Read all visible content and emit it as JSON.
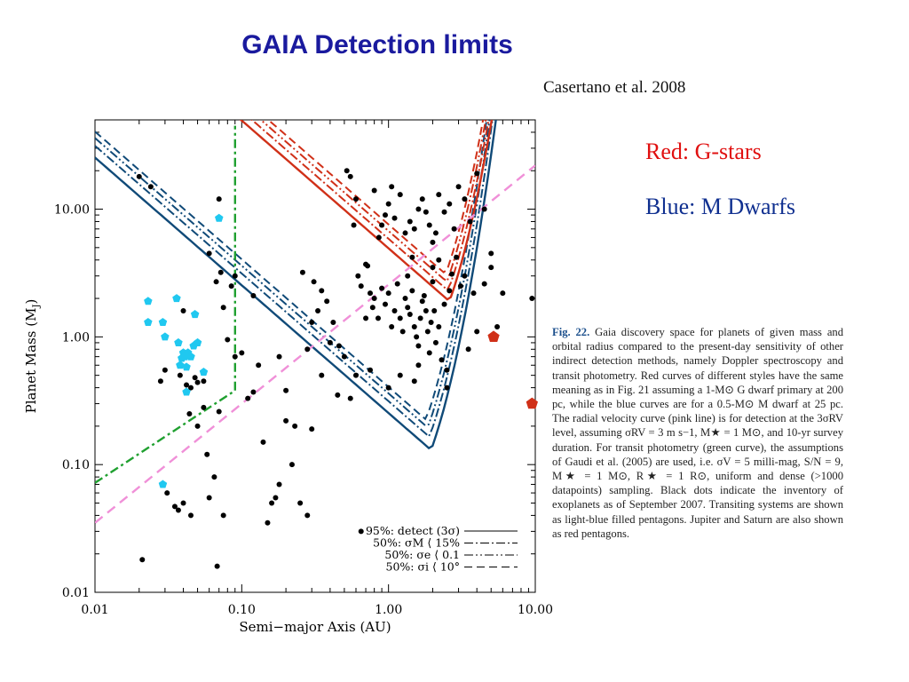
{
  "slide": {
    "title": "GAIA Detection limits",
    "citation": "Casertano et al. 2008",
    "legend_red": "Red: G-stars",
    "legend_blue": "Blue: M Dwarfs"
  },
  "caption": {
    "label": "Fig. 22.",
    "text": " Gaia discovery space for planets of given mass and orbital radius compared to the present-day sensitivity of other indirect detection methods, namely Doppler spectroscopy and transit photometry. Red curves of different styles have the same meaning as in Fig. 21 assuming a 1-M⊙ G dwarf primary at 200 pc, while the blue curves are for a 0.5-M⊙ M dwarf at 25 pc. The radial velocity curve (pink line) is for detection at the 3σRV level, assuming σRV = 3 m s−1, M★ = 1 M⊙, and 10-yr survey duration. For transit photometry (green curve), the assumptions of Gaudi et al. (2005) are used, i.e. σV = 5 milli-mag, S/N = 9, M★ = 1 M⊙, R★ = 1 R⊙, uniform and dense (>1000 datapoints) sampling. Black dots indicate the inventory of exoplanets as of September 2007. Transiting systems are shown as light-blue filled pentagons. Jupiter and Saturn are also shown as red pentagons."
  },
  "colors": {
    "red_curves": "#d03018",
    "blue_curves": "#104a78",
    "rv_curve": "#f090d8",
    "transit_curve": "#20a030",
    "transiting_markers": "#20c8f0",
    "known_planets": "#000000"
  },
  "chart_data": {
    "type": "line",
    "xlabel": "Semi−major Axis (AU)",
    "ylabel": "Planet Mass (M",
    "ylabel_sub": "J",
    "ylabel_end": ")",
    "xscale": "log",
    "yscale": "log",
    "xlim": [
      0.01,
      10
    ],
    "ylim": [
      0.01,
      50
    ],
    "xticks": [
      {
        "value": 0.01,
        "label": "0.01"
      },
      {
        "value": 0.1,
        "label": "0.10"
      },
      {
        "value": 1,
        "label": "1.00"
      },
      {
        "value": 10,
        "label": "10.00"
      }
    ],
    "yticks": [
      {
        "value": 0.01,
        "label": "0.01"
      },
      {
        "value": 0.1,
        "label": "0.10"
      },
      {
        "value": 1,
        "label": "1.00"
      },
      {
        "value": 10,
        "label": "10.00"
      }
    ],
    "legend": {
      "placement": "bottom-right",
      "entries": [
        {
          "label": "95%: detect (3σ)",
          "dash": "solid"
        },
        {
          "label": "50%: σM ⟨ 15%",
          "dash": "dash-dot"
        },
        {
          "label": "50%: σe ⟨ 0.1",
          "dash": "dash-dot-dot"
        },
        {
          "label": "50%: σi ⟨ 10°",
          "dash": "dashed"
        }
      ]
    },
    "series": [
      {
        "group": "M dwarf",
        "style": "solid",
        "min": [
          1.95,
          0.13
        ]
      },
      {
        "group": "M dwarf",
        "style": "dash-dot",
        "min": [
          1.9,
          0.165
        ]
      },
      {
        "group": "M dwarf",
        "style": "dash-dot-dot",
        "min": [
          1.85,
          0.195
        ]
      },
      {
        "group": "M dwarf",
        "style": "dashed",
        "min": [
          1.8,
          0.225
        ]
      },
      {
        "group": "G dwarf",
        "style": "solid",
        "min": [
          2.6,
          1.9
        ]
      },
      {
        "group": "G dwarf",
        "style": "dash-dot",
        "min": [
          2.55,
          2.3
        ]
      },
      {
        "group": "G dwarf",
        "style": "dash-dot-dot",
        "min": [
          2.5,
          2.7
        ]
      },
      {
        "group": "G dwarf",
        "style": "dashed",
        "min": [
          2.45,
          3.1
        ]
      }
    ],
    "rv_curve": [
      [
        0.01,
        0.035
      ],
      [
        10,
        22
      ]
    ],
    "transit_curve": [
      [
        0.01,
        0.072
      ],
      [
        0.09,
        0.38
      ],
      [
        0.09,
        45
      ]
    ],
    "solar_system": [
      [
        5.2,
        1.0
      ],
      [
        9.5,
        0.3
      ]
    ],
    "transiting_planets": [
      [
        0.023,
        1.9
      ],
      [
        0.023,
        1.3
      ],
      [
        0.029,
        1.3
      ],
      [
        0.03,
        1.0
      ],
      [
        0.036,
        2.0
      ],
      [
        0.037,
        0.9
      ],
      [
        0.04,
        0.75
      ],
      [
        0.039,
        0.68
      ],
      [
        0.038,
        0.6
      ],
      [
        0.041,
        0.7
      ],
      [
        0.043,
        0.75
      ],
      [
        0.045,
        0.7
      ],
      [
        0.042,
        0.58
      ],
      [
        0.047,
        0.85
      ],
      [
        0.05,
        0.9
      ],
      [
        0.055,
        0.53
      ],
      [
        0.048,
        1.5
      ],
      [
        0.042,
        0.37
      ],
      [
        0.07,
        8.5
      ],
      [
        0.029,
        0.07
      ]
    ],
    "known_planets": [
      [
        0.021,
        0.018
      ],
      [
        0.02,
        18
      ],
      [
        0.024,
        15
      ],
      [
        0.028,
        0.45
      ],
      [
        0.03,
        0.55
      ],
      [
        0.031,
        0.06
      ],
      [
        0.035,
        0.047
      ],
      [
        0.037,
        0.044
      ],
      [
        0.04,
        0.05
      ],
      [
        0.045,
        0.04
      ],
      [
        0.038,
        0.5
      ],
      [
        0.04,
        1.6
      ],
      [
        0.042,
        0.42
      ],
      [
        0.045,
        0.4
      ],
      [
        0.05,
        0.44
      ],
      [
        0.048,
        0.48
      ],
      [
        0.044,
        0.25
      ],
      [
        0.05,
        0.2
      ],
      [
        0.055,
        0.45
      ],
      [
        0.058,
        0.12
      ],
      [
        0.065,
        0.08
      ],
      [
        0.07,
        0.26
      ],
      [
        0.06,
        0.055
      ],
      [
        0.075,
        0.04
      ],
      [
        0.068,
        0.016
      ],
      [
        0.067,
        2.7
      ],
      [
        0.072,
        3.2
      ],
      [
        0.075,
        1.7
      ],
      [
        0.08,
        0.95
      ],
      [
        0.09,
        0.7
      ],
      [
        0.1,
        0.75
      ],
      [
        0.11,
        0.33
      ],
      [
        0.12,
        0.37
      ],
      [
        0.13,
        0.6
      ],
      [
        0.14,
        0.15
      ],
      [
        0.15,
        0.035
      ],
      [
        0.16,
        0.05
      ],
      [
        0.17,
        0.055
      ],
      [
        0.18,
        0.07
      ],
      [
        0.2,
        0.22
      ],
      [
        0.22,
        0.1
      ],
      [
        0.23,
        0.2
      ],
      [
        0.25,
        0.05
      ],
      [
        0.28,
        0.04
      ],
      [
        0.3,
        0.19
      ],
      [
        0.26,
        3.2
      ],
      [
        0.31,
        2.7
      ],
      [
        0.33,
        1.6
      ],
      [
        0.35,
        2.3
      ],
      [
        0.38,
        1.9
      ],
      [
        0.42,
        1.3
      ],
      [
        0.46,
        0.85
      ],
      [
        0.5,
        0.7
      ],
      [
        0.55,
        0.33
      ],
      [
        0.6,
        0.5
      ],
      [
        0.62,
        3.0
      ],
      [
        0.65,
        0.03
      ],
      [
        0.7,
        3.7
      ],
      [
        0.72,
        3.6
      ],
      [
        0.75,
        2.2
      ],
      [
        0.78,
        1.7
      ],
      [
        0.8,
        2.0
      ],
      [
        0.85,
        1.4
      ],
      [
        0.9,
        2.4
      ],
      [
        0.95,
        1.8
      ],
      [
        1.0,
        2.2
      ],
      [
        1.05,
        1.2
      ],
      [
        1.1,
        1.6
      ],
      [
        1.15,
        2.6
      ],
      [
        1.2,
        1.4
      ],
      [
        1.25,
        1.1
      ],
      [
        1.3,
        2.0
      ],
      [
        1.35,
        1.7
      ],
      [
        1.4,
        1.5
      ],
      [
        1.45,
        2.3
      ],
      [
        1.5,
        1.2
      ],
      [
        1.55,
        1.0
      ],
      [
        1.6,
        0.85
      ],
      [
        1.65,
        1.4
      ],
      [
        1.7,
        1.9
      ],
      [
        1.75,
        2.1
      ],
      [
        1.8,
        1.6
      ],
      [
        1.85,
        1.1
      ],
      [
        1.9,
        0.75
      ],
      [
        1.95,
        1.3
      ],
      [
        2.0,
        2.7
      ],
      [
        2.05,
        1.6
      ],
      [
        2.1,
        0.9
      ],
      [
        2.2,
        1.2
      ],
      [
        2.3,
        0.66
      ],
      [
        2.4,
        1.8
      ],
      [
        2.5,
        0.55
      ],
      [
        2.6,
        2.3
      ],
      [
        2.7,
        3.1
      ],
      [
        2.9,
        4.2
      ],
      [
        3.1,
        2.5
      ],
      [
        3.3,
        3.0
      ],
      [
        3.5,
        0.8
      ],
      [
        3.8,
        2.2
      ],
      [
        4.0,
        1.1
      ],
      [
        4.5,
        2.6
      ],
      [
        5.0,
        3.5
      ],
      [
        5.5,
        1.2
      ],
      [
        6.0,
        2.2
      ],
      [
        0.86,
        6.0
      ],
      [
        0.9,
        7.5
      ],
      [
        0.95,
        9.0
      ],
      [
        1.0,
        11
      ],
      [
        1.05,
        15
      ],
      [
        1.1,
        8.5
      ],
      [
        1.2,
        13
      ],
      [
        1.3,
        6.5
      ],
      [
        1.4,
        8.0
      ],
      [
        1.5,
        7.0
      ],
      [
        1.6,
        10
      ],
      [
        1.7,
        12
      ],
      [
        1.8,
        9.5
      ],
      [
        1.9,
        7.5
      ],
      [
        2.0,
        5.5
      ],
      [
        2.1,
        6.5
      ],
      [
        2.2,
        13
      ],
      [
        2.4,
        9.5
      ],
      [
        2.6,
        11
      ],
      [
        2.8,
        7.0
      ],
      [
        3.0,
        15
      ],
      [
        3.3,
        12
      ],
      [
        3.6,
        8.0
      ],
      [
        4.0,
        19
      ],
      [
        4.5,
        10
      ],
      [
        5.0,
        4.5
      ],
      [
        9.5,
        2.0
      ],
      [
        0.6,
        12
      ],
      [
        0.55,
        18
      ],
      [
        0.3,
        1.3
      ],
      [
        0.28,
        0.8
      ],
      [
        0.35,
        0.5
      ],
      [
        0.4,
        0.9
      ],
      [
        0.45,
        0.35
      ],
      [
        0.2,
        0.38
      ],
      [
        0.12,
        2.1
      ],
      [
        0.18,
        0.7
      ],
      [
        0.085,
        2.5
      ],
      [
        0.09,
        3.0
      ],
      [
        0.07,
        12
      ],
      [
        0.06,
        4.5
      ],
      [
        0.055,
        0.28
      ],
      [
        1.6,
        0.6
      ],
      [
        1.5,
        0.45
      ],
      [
        2.5,
        0.4
      ],
      [
        1.2,
        0.5
      ],
      [
        1.0,
        0.4
      ],
      [
        0.75,
        0.55
      ],
      [
        0.7,
        1.4
      ],
      [
        0.65,
        2.5
      ],
      [
        1.35,
        3.0
      ],
      [
        1.45,
        4.2
      ],
      [
        2.0,
        3.5
      ],
      [
        2.2,
        4.0
      ],
      [
        0.58,
        7.5
      ],
      [
        0.8,
        14
      ],
      [
        0.52,
        20
      ]
    ]
  }
}
